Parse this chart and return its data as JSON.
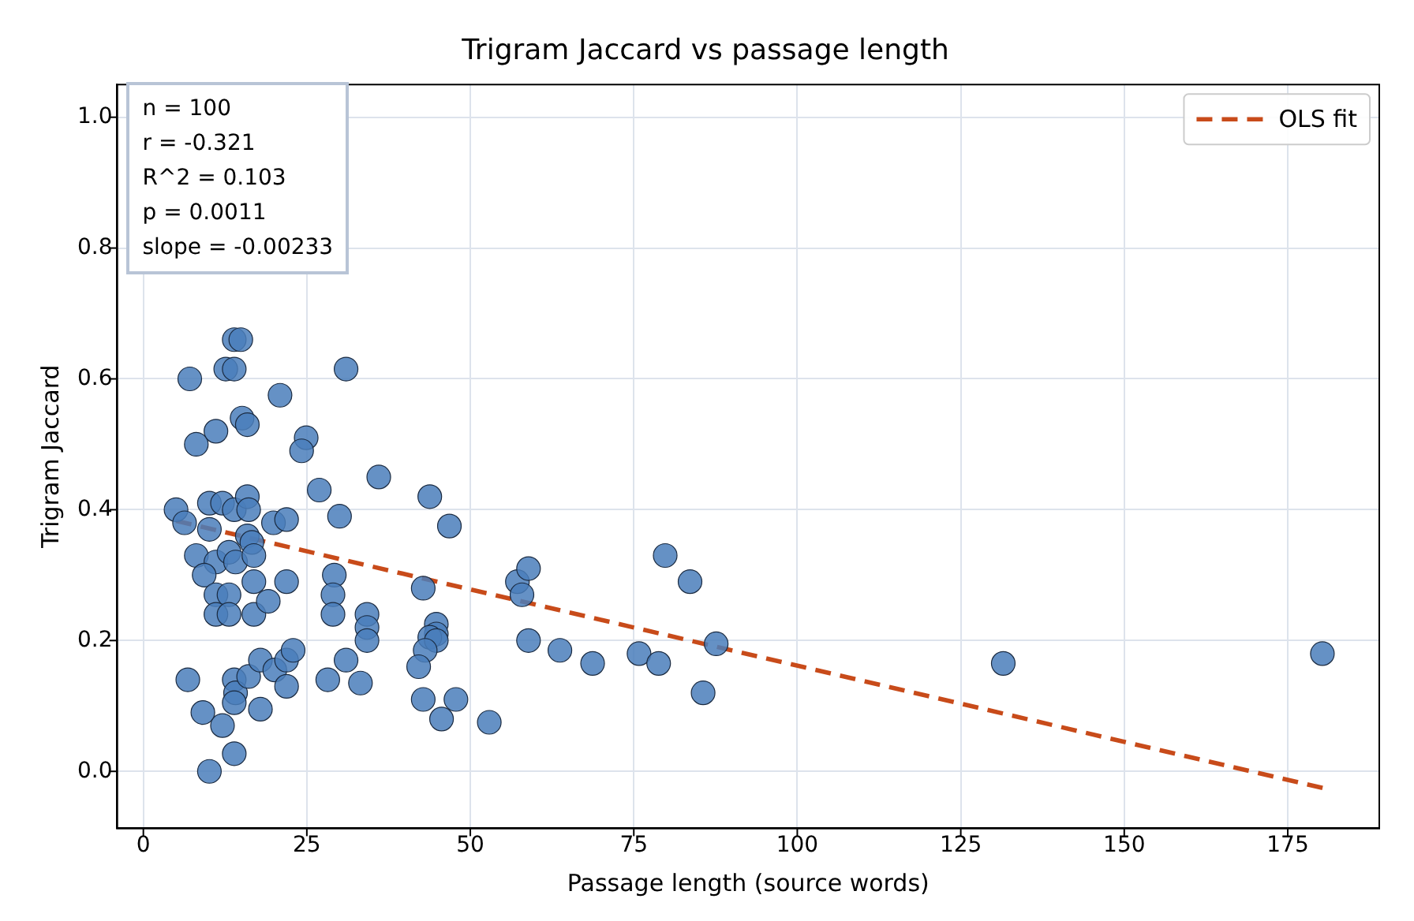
{
  "chart_data": {
    "type": "scatter",
    "title": "Trigram Jaccard vs passage length",
    "xlabel": "Passage length (source words)",
    "ylabel": "Trigram Jaccard",
    "xlim": [
      -4,
      189
    ],
    "xticks": [
      0,
      25,
      50,
      75,
      100,
      125,
      150,
      175
    ],
    "ylim": [
      -0.087,
      1.05
    ],
    "yticks": [
      {
        "value": 0,
        "label": "0.0"
      },
      0.2,
      0.4,
      0.6,
      0.8,
      {
        "value": 1,
        "label": "1.0"
      }
    ],
    "grid": true,
    "legend": "top right",
    "marker": "circle",
    "annotations": [
      "n = 100\nr = -0.321\nR^2 = 0.103\np = 0.0011\nslope = -0.00233"
    ],
    "series": [
      {
        "type": "scatter",
        "color": "#4a7ebb",
        "x": [
          8.1,
          11.1,
          15.1,
          15.9,
          24.9,
          24.2,
          36.0,
          26.9,
          43.8,
          5.0,
          6.3,
          10.1,
          12.1,
          13.9,
          15.9,
          16.1,
          19.9,
          21.9,
          30.0,
          10.1,
          15.9,
          16.6,
          8.1,
          11.1,
          9.3,
          13.1,
          14.1,
          16.9,
          16.9,
          21.9,
          11.1,
          13.1,
          11.1,
          13.1,
          16.9,
          19.1,
          29.2,
          29.0,
          29.0,
          34.2,
          34.2,
          34.2,
          42.8,
          44.8,
          44.8,
          43.8,
          44.8,
          43.1,
          6.8,
          9.1,
          12.1,
          10.1,
          13.9,
          13.9,
          14.1,
          13.9,
          16.1,
          17.9,
          20.1,
          21.9,
          22.9,
          21.9,
          17.9,
          28.2,
          31.0,
          33.2,
          42.1,
          42.8,
          45.6,
          46.8,
          47.8,
          52.9,
          57.2,
          58.9,
          57.9,
          58.9,
          63.7,
          68.7,
          75.8,
          78.8,
          79.8,
          83.6,
          87.6,
          85.6,
          7.1,
          13.9,
          14.9,
          12.6,
          13.9,
          31.0,
          20.9,
          131.5,
          180.3
        ],
        "values": [
          0.5,
          0.52,
          0.54,
          0.53,
          0.51,
          0.49,
          0.45,
          0.43,
          0.42,
          0.4,
          0.38,
          0.41,
          0.41,
          0.4,
          0.42,
          0.4,
          0.38,
          0.385,
          0.39,
          0.37,
          0.36,
          0.35,
          0.33,
          0.32,
          0.3,
          0.335,
          0.32,
          0.33,
          0.29,
          0.29,
          0.27,
          0.27,
          0.24,
          0.24,
          0.24,
          0.26,
          0.3,
          0.27,
          0.24,
          0.24,
          0.22,
          0.2,
          0.28,
          0.225,
          0.21,
          0.205,
          0.2,
          0.185,
          0.14,
          0.09,
          0.07,
          0.0,
          0.027,
          0.14,
          0.12,
          0.105,
          0.145,
          0.17,
          0.155,
          0.17,
          0.185,
          0.13,
          0.095,
          0.14,
          0.17,
          0.135,
          0.16,
          0.11,
          0.08,
          0.375,
          0.11,
          0.075,
          0.29,
          0.31,
          0.27,
          0.2,
          0.185,
          0.165,
          0.18,
          0.165,
          0.33,
          0.29,
          0.195,
          0.12,
          0.6,
          0.66,
          0.66,
          0.615,
          0.615,
          0.615,
          0.575,
          0.165,
          0.18
        ]
      },
      {
        "type": "line",
        "name": "OLS fit",
        "color": "#c84b1a",
        "line_style": "dashed",
        "marker": "none",
        "x": [
          5,
          181
        ],
        "values": [
          0.383,
          -0.027
        ]
      }
    ]
  }
}
